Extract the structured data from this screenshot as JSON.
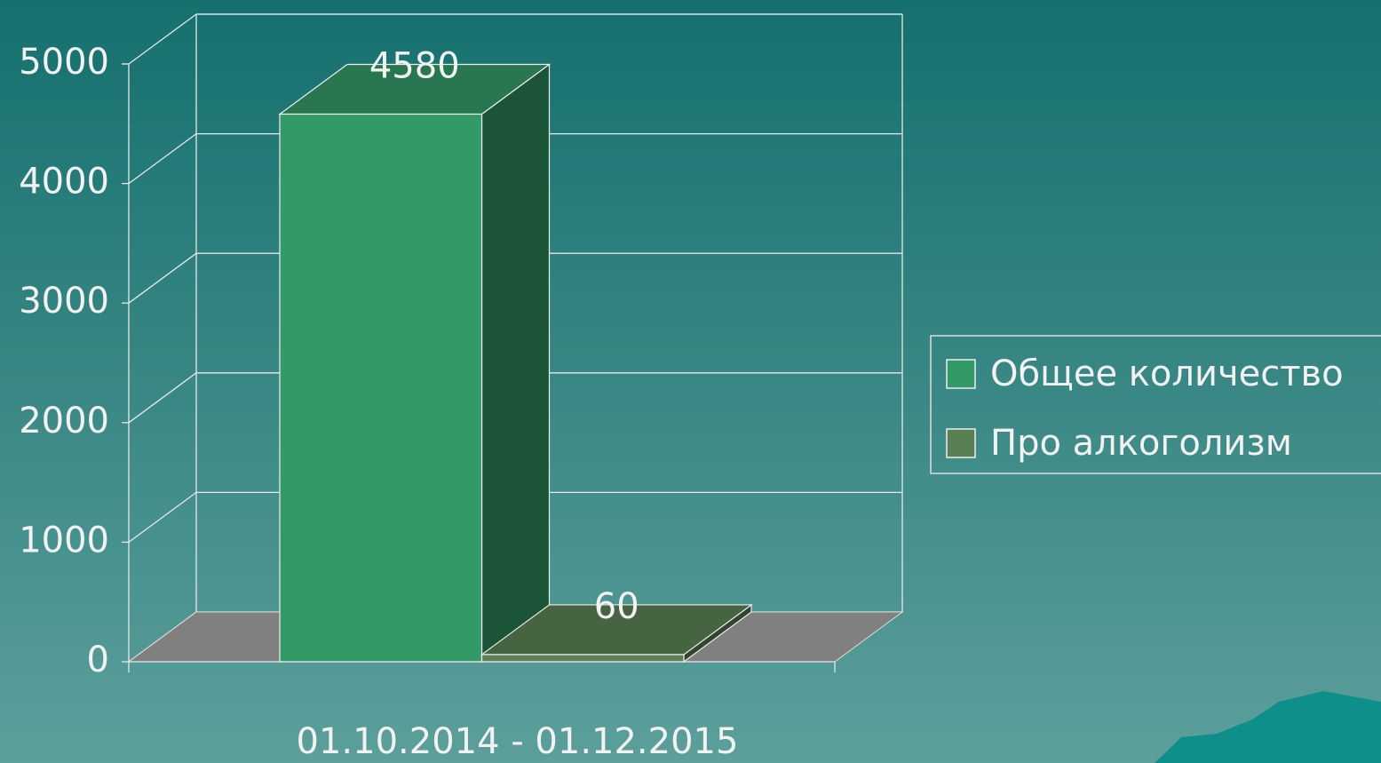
{
  "chart_data": {
    "type": "bar3d",
    "categories": [
      "01.10.2014 - 01.12.2015"
    ],
    "series": [
      {
        "name": "Общее количество",
        "color": "#339966",
        "values": [
          4580
        ]
      },
      {
        "name": "Про алкоголизм",
        "color": "#5a7f55",
        "values": [
          60
        ]
      }
    ],
    "ylim": [
      0,
      5000
    ],
    "yticks": [
      0,
      1000,
      2000,
      3000,
      4000,
      5000
    ],
    "grid": true,
    "legend": "right"
  }
}
